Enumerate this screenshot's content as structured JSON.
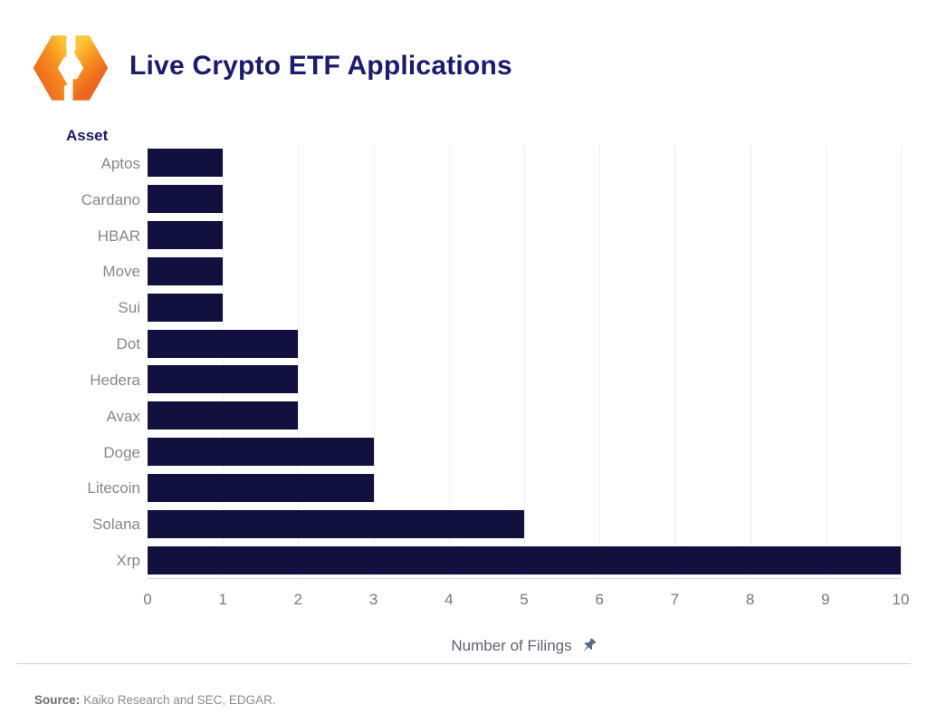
{
  "chart_data": {
    "type": "bar",
    "orientation": "horizontal",
    "title": "Live Crypto ETF Applications",
    "ylabel": "Asset",
    "xlabel": "Number of Filings",
    "categories": [
      "Aptos",
      "Cardano",
      "HBAR",
      "Move",
      "Sui",
      "Dot",
      "Hedera",
      "Avax",
      "Doge",
      "Litecoin",
      "Solana",
      "Xrp"
    ],
    "values": [
      1,
      1,
      1,
      1,
      1,
      2,
      2,
      2,
      3,
      3,
      5,
      10
    ],
    "xlim": [
      0,
      10
    ],
    "xticks": [
      0,
      1,
      2,
      3,
      4,
      5,
      6,
      7,
      8,
      9,
      10
    ],
    "grid": "vertical-gridlines",
    "legend": "none"
  },
  "icons": {
    "logo": "kaiko-logo",
    "pin": "pushpin-icon"
  },
  "colors": {
    "bar": "#11103f",
    "title": "#1b1b6f",
    "gridline": "#ededed",
    "axis_text": "#787878",
    "category_text": "#878787",
    "xlabel_text": "#5c6370",
    "pin": "#54688a",
    "logo_orange_light": "#fcc233",
    "logo_orange_dark": "#ef6a1f"
  },
  "footer": {
    "source_label": "Source:",
    "source_text": "Kaiko Research and SEC, EDGAR."
  }
}
